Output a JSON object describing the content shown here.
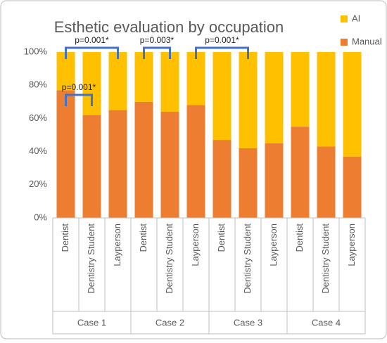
{
  "chart_data": {
    "type": "stacked_bar",
    "title": "Esthetic evaluation by occupation",
    "categories": [
      "Dentist",
      "Dentistry Student",
      "Layperson",
      "Dentist",
      "Dentistry Student",
      "Layperson",
      "Dentist",
      "Dentistry Student",
      "Layperson",
      "Dentist",
      "Dentistry Student",
      "Layperson"
    ],
    "groups": [
      "Case 1",
      "Case 2",
      "Case 3",
      "Case 4"
    ],
    "series": [
      {
        "name": "Manual",
        "color": "#ED7D31",
        "values": [
          77,
          62,
          65,
          70,
          64,
          68,
          47,
          42,
          45,
          55,
          43,
          37
        ]
      },
      {
        "name": "AI",
        "color": "#FFC000",
        "values": [
          23,
          38,
          35,
          30,
          36,
          32,
          53,
          58,
          55,
          45,
          57,
          63
        ]
      }
    ],
    "ylim": [
      0,
      100
    ],
    "yticks": [
      {
        "value": 0,
        "label": "0%"
      },
      {
        "value": 20,
        "label": "20%"
      },
      {
        "value": 40,
        "label": "40%"
      },
      {
        "value": 60,
        "label": "60%"
      },
      {
        "value": 80,
        "label": "80%"
      },
      {
        "value": 100,
        "label": "100%"
      }
    ],
    "annotations": [
      "p=0.001*",
      "p=0.001*",
      "p=0.003*",
      "p=0.001*"
    ],
    "legend": "top-right"
  }
}
